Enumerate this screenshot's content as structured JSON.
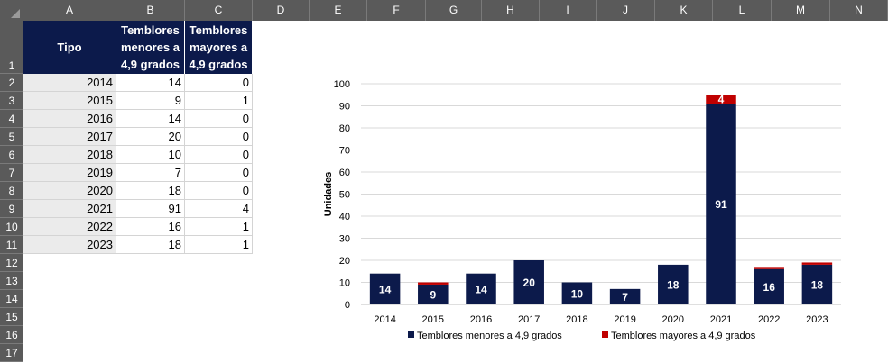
{
  "spreadsheet": {
    "columns": [
      "A",
      "B",
      "C",
      "D",
      "E",
      "F",
      "G",
      "H",
      "I",
      "J",
      "K",
      "L",
      "M",
      "N"
    ],
    "rows": [
      "1",
      "2",
      "3",
      "4",
      "5",
      "6",
      "7",
      "8",
      "9",
      "10",
      "11",
      "12",
      "13",
      "14",
      "15",
      "16",
      "17"
    ],
    "table_headers": [
      "Tipo",
      "Temblores\nmenores a\n4,9 grados",
      "Temblores\nmayores a\n4,9 grados"
    ],
    "table_rows": [
      [
        "2014",
        "14",
        "0"
      ],
      [
        "2015",
        "9",
        "1"
      ],
      [
        "2016",
        "14",
        "0"
      ],
      [
        "2017",
        "20",
        "0"
      ],
      [
        "2018",
        "10",
        "0"
      ],
      [
        "2019",
        "7",
        "0"
      ],
      [
        "2020",
        "18",
        "0"
      ],
      [
        "2021",
        "91",
        "4"
      ],
      [
        "2022",
        "16",
        "1"
      ],
      [
        "2023",
        "18",
        "1"
      ]
    ]
  },
  "chart_data": {
    "type": "bar",
    "stacked": true,
    "categories": [
      "2014",
      "2015",
      "2016",
      "2017",
      "2018",
      "2019",
      "2020",
      "2021",
      "2022",
      "2023"
    ],
    "series": [
      {
        "name": "Temblores menores a 4,9 grados",
        "values": [
          14,
          9,
          14,
          20,
          10,
          7,
          18,
          91,
          16,
          18
        ],
        "color": "#0c1a4b",
        "labels": [
          "14",
          "9",
          "14",
          "20",
          "10",
          "7",
          "18",
          "91",
          "16",
          "18"
        ]
      },
      {
        "name": "Temblores mayores a 4,9 grados",
        "values": [
          0,
          1,
          0,
          0,
          0,
          0,
          0,
          4,
          1,
          1
        ],
        "color": "#c00000",
        "labels": [
          "",
          "",
          "",
          "",
          "",
          "",
          "",
          "4",
          "",
          ""
        ]
      }
    ],
    "title": "",
    "xlabel": "",
    "ylabel": "Unidades",
    "ylim": [
      0,
      100
    ],
    "yticks": [
      "0",
      "10",
      "20",
      "30",
      "40",
      "50",
      "60",
      "70",
      "80",
      "90",
      "100"
    ],
    "grid": true,
    "legend": "bottom"
  }
}
